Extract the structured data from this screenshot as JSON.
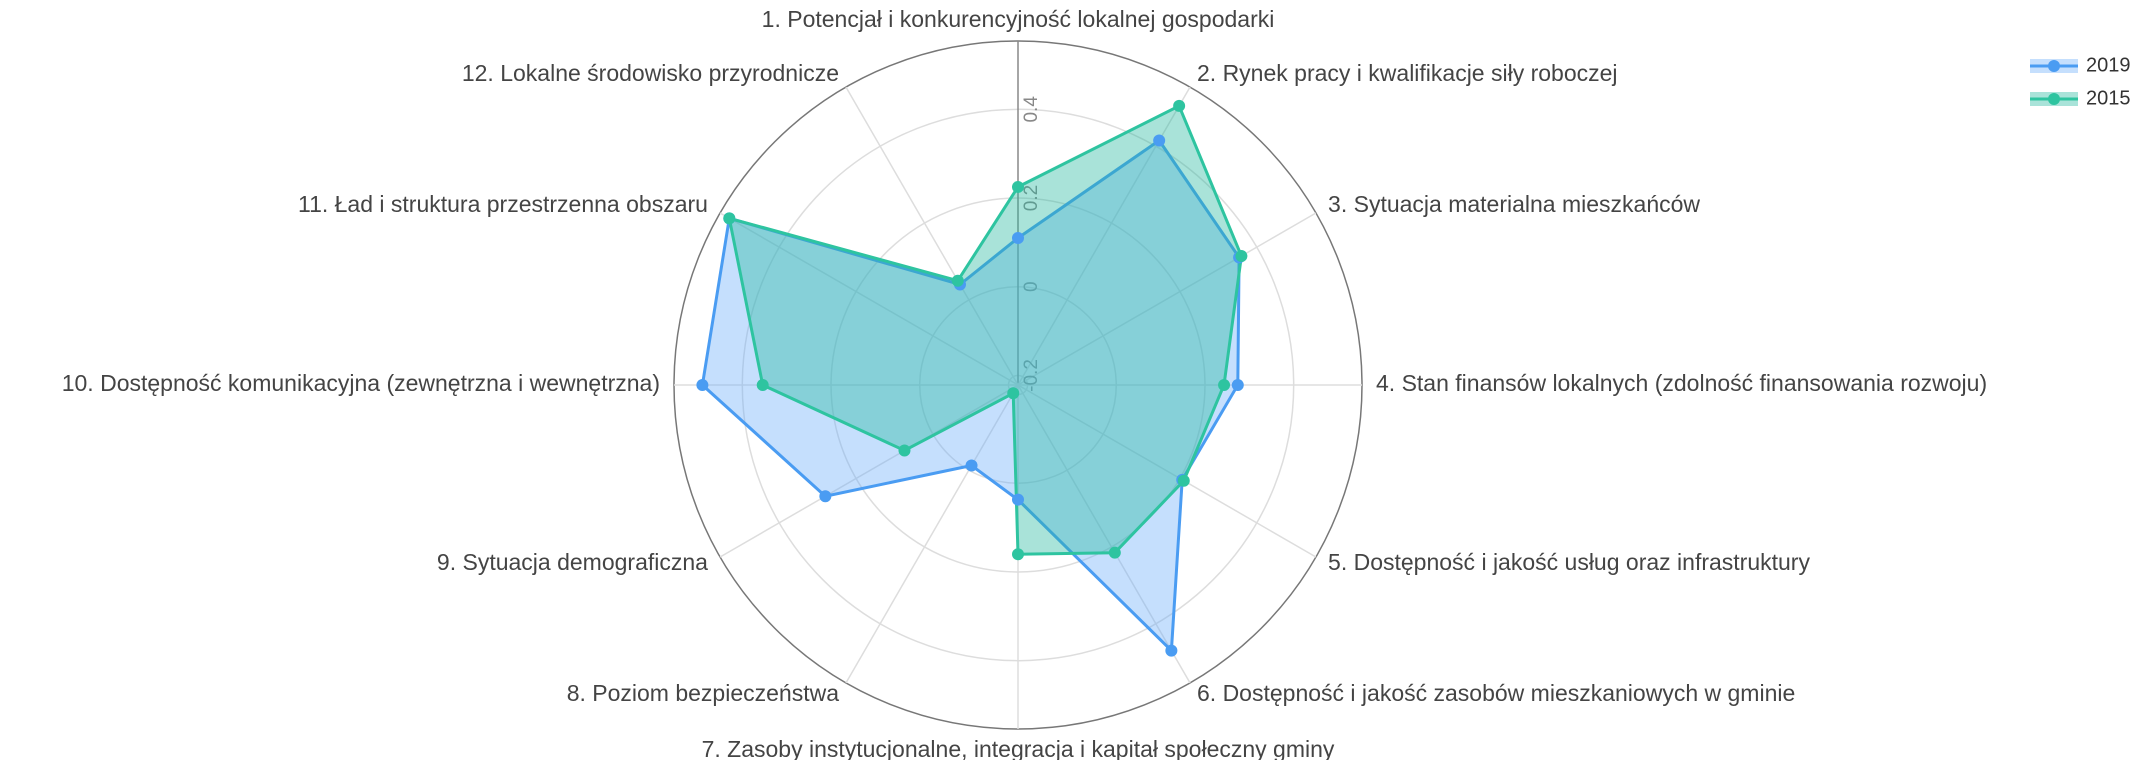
{
  "chart_data": {
    "type": "radar",
    "categories": [
      "1. Potencjał i konkurencyjność lokalnej gospodarki",
      "2. Rynek pracy i kwalifikacje siły roboczej",
      "3. Sytuacja materialna mieszkańców",
      "4. Stan finansów lokalnych  (zdolność finansowania rozwoju)",
      "5. Dostępność i jakość usług oraz infrastruktury",
      "6. Dostępność i jakość zasobów mieszkaniowych w gminie",
      "7. Zasoby instytucjonalne, integracja i kapitał społeczny gminy",
      "8. Poziom bezpieczeństwa",
      "9. Sytuacja demograficzna",
      "10. Dostępność komunikacyjna (zewnętrzna i wewnętrzna)",
      "11. Ład i struktura przestrzenna obszaru",
      "12. Lokalne środowisko przyrodnicze"
    ],
    "series": [
      {
        "name": "2019",
        "color": "#4a9cf2",
        "fill": "rgba(110,175,250,0.4)",
        "values": [
          0.11,
          0.415,
          0.354,
          0.274,
          0.206,
          0.47,
          0.037,
          -0.012,
          0.28,
          0.49,
          0.53,
          0.04
        ]
      },
      {
        "name": "2015",
        "color": "#2ec4a0",
        "fill": "rgba(40,185,160,0.4)",
        "values": [
          0.225,
          0.505,
          0.36,
          0.243,
          0.21,
          0.215,
          0.16,
          -0.2,
          0.074,
          0.354,
          0.53,
          0.05
        ]
      }
    ],
    "rlim": [
      -0.2215,
      0.554
    ],
    "rticks": [
      -0.2,
      0,
      0.2,
      0.4
    ],
    "grid": true,
    "legend": "top-right"
  }
}
